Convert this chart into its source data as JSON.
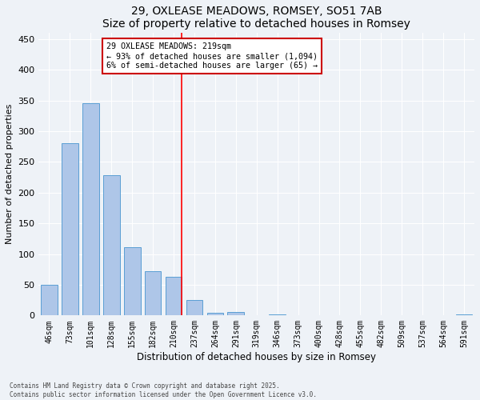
{
  "title": "29, OXLEASE MEADOWS, ROMSEY, SO51 7AB",
  "subtitle": "Size of property relative to detached houses in Romsey",
  "xlabel": "Distribution of detached houses by size in Romsey",
  "ylabel": "Number of detached properties",
  "bar_color": "#aec6e8",
  "bar_edge_color": "#5a9fd4",
  "background_color": "#eef2f7",
  "grid_color": "#ffffff",
  "categories": [
    "46sqm",
    "73sqm",
    "101sqm",
    "128sqm",
    "155sqm",
    "182sqm",
    "210sqm",
    "237sqm",
    "264sqm",
    "291sqm",
    "319sqm",
    "346sqm",
    "373sqm",
    "400sqm",
    "428sqm",
    "455sqm",
    "482sqm",
    "509sqm",
    "537sqm",
    "564sqm",
    "591sqm"
  ],
  "values": [
    50,
    280,
    345,
    228,
    111,
    72,
    63,
    25,
    5,
    6,
    0,
    2,
    0,
    1,
    0,
    0,
    0,
    0,
    0,
    0,
    2
  ],
  "ylim": [
    0,
    460
  ],
  "yticks": [
    0,
    50,
    100,
    150,
    200,
    250,
    300,
    350,
    400,
    450
  ],
  "marker_bar_index": 6,
  "marker_label1": "29 OXLEASE MEADOWS: 219sqm",
  "marker_label2": "← 93% of detached houses are smaller (1,094)",
  "marker_label3": "6% of semi-detached houses are larger (65) →",
  "annotation_box_color": "#ffffff",
  "annotation_border_color": "#cc0000",
  "footer1": "Contains HM Land Registry data © Crown copyright and database right 2025.",
  "footer2": "Contains public sector information licensed under the Open Government Licence v3.0."
}
